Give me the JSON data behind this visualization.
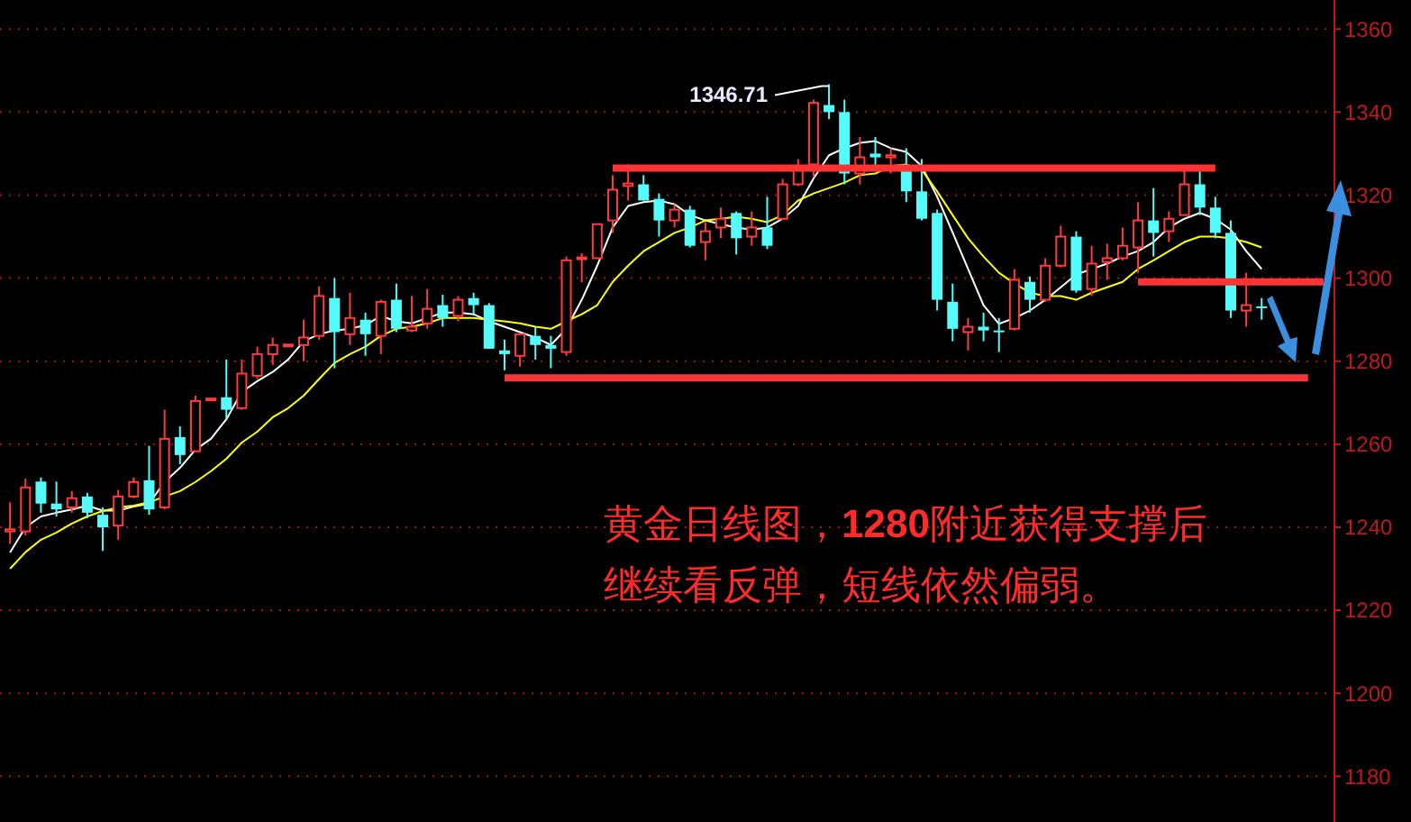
{
  "chart_data": {
    "type": "candlestick",
    "categories": [
      null,
      null,
      null,
      null,
      null,
      null,
      null,
      null,
      null,
      null,
      null,
      null,
      null,
      null,
      null,
      null,
      null,
      null,
      null,
      null,
      null,
      null,
      null,
      null,
      null,
      null,
      null,
      null,
      null,
      null,
      null,
      null,
      null,
      null,
      null,
      null,
      null,
      null,
      null,
      null,
      null,
      null,
      null,
      null,
      null,
      null,
      null,
      null,
      null,
      null,
      null,
      null,
      null,
      null,
      null,
      null,
      null,
      null,
      null,
      null,
      null,
      null,
      null,
      null,
      null,
      null,
      null,
      null,
      null,
      null,
      null,
      null,
      null,
      null,
      null,
      null,
      null,
      null,
      null,
      null,
      null,
      null,
      null,
      null,
      null,
      null
    ],
    "ohlc": [
      [
        1239,
        1246,
        1236,
        1239.5
      ],
      [
        1239,
        1251.7,
        1238,
        1249.6
      ],
      [
        1251,
        1252,
        1243.5,
        1245.7
      ],
      [
        1245.7,
        1251,
        1242.6,
        1244.3
      ],
      [
        1244.8,
        1248.7,
        1243.5,
        1247
      ],
      [
        1247.4,
        1248.3,
        1242.2,
        1243.5
      ],
      [
        1243,
        1244.8,
        1234.3,
        1240
      ],
      [
        1240.4,
        1249,
        1237,
        1247.4
      ],
      [
        1247.4,
        1252,
        1247,
        1250.9
      ],
      [
        1251.3,
        1259.6,
        1243,
        1244.3
      ],
      [
        1244.8,
        1268.3,
        1244.3,
        1261.3
      ],
      [
        1261.7,
        1264.3,
        1255.2,
        1257.4
      ],
      [
        1258.3,
        1271.7,
        1258.3,
        1270.4
      ],
      [
        1270.9,
        1271,
        1270.8,
        1271
      ],
      [
        1271.3,
        1280.4,
        1266.1,
        1268.3
      ],
      [
        1268.7,
        1280.4,
        1268.3,
        1277
      ],
      [
        1276.5,
        1283.5,
        1275.7,
        1281.7
      ],
      [
        1281.7,
        1285.7,
        1279.1,
        1283.9
      ],
      [
        1283.9,
        1284,
        1283.8,
        1284
      ],
      [
        1283.9,
        1290,
        1280,
        1285.7
      ],
      [
        1286.1,
        1298,
        1285.2,
        1295.7
      ],
      [
        1295.2,
        1300,
        1278.3,
        1287
      ],
      [
        1286.5,
        1296.5,
        1283.9,
        1290.4
      ],
      [
        1290,
        1291.7,
        1281.3,
        1286.5
      ],
      [
        1286.1,
        1294.8,
        1281.7,
        1294.3
      ],
      [
        1294.8,
        1298.7,
        1287,
        1287.8
      ],
      [
        1287.4,
        1295.7,
        1287,
        1288.3
      ],
      [
        1289.1,
        1297.4,
        1287.8,
        1292.6
      ],
      [
        1293.5,
        1296,
        1288.3,
        1290.4
      ],
      [
        1290.9,
        1295.7,
        1289.6,
        1294.8
      ],
      [
        1295.2,
        1296.5,
        1291.3,
        1293.5
      ],
      [
        1293.5,
        1294,
        1283,
        1283
      ],
      [
        1282.6,
        1285.2,
        1277.8,
        1281.7
      ],
      [
        1281.3,
        1286.5,
        1278.7,
        1286.5
      ],
      [
        1286.1,
        1288.3,
        1280.4,
        1283.9
      ],
      [
        1283.9,
        1286.1,
        1278.3,
        1283
      ],
      [
        1282.2,
        1305.2,
        1281.3,
        1304.3
      ],
      [
        1304.6,
        1306,
        1299,
        1305
      ],
      [
        1304.8,
        1313,
        1304.8,
        1313
      ],
      [
        1313.9,
        1324.8,
        1310.9,
        1321.3
      ],
      [
        1322.2,
        1327.4,
        1318.7,
        1322.8
      ],
      [
        1322.6,
        1324.8,
        1318.7,
        1318.7
      ],
      [
        1319.1,
        1320.4,
        1310,
        1313.9
      ],
      [
        1313.9,
        1317.8,
        1312.2,
        1316.5
      ],
      [
        1316.5,
        1317.4,
        1307.4,
        1307.8
      ],
      [
        1308.7,
        1313.5,
        1304.3,
        1311.3
      ],
      [
        1312.2,
        1317,
        1309.6,
        1314.3
      ],
      [
        1315.7,
        1316.1,
        1305.7,
        1309.6
      ],
      [
        1310,
        1316,
        1307.8,
        1312.2
      ],
      [
        1312.2,
        1319.6,
        1307,
        1307.8
      ],
      [
        1314.3,
        1323.9,
        1314,
        1322.6
      ],
      [
        1322.6,
        1328.7,
        1322.2,
        1327
      ],
      [
        1327.4,
        1343,
        1324.3,
        1342.2
      ],
      [
        1341.7,
        1346.71,
        1338.3,
        1340
      ],
      [
        1340,
        1343,
        1322.6,
        1325.2
      ],
      [
        1325.2,
        1334,
        1322.6,
        1329.1
      ],
      [
        1330,
        1334,
        1327,
        1329.1
      ],
      [
        1329.1,
        1331.3,
        1325.2,
        1329.6
      ],
      [
        1326,
        1331.3,
        1318.3,
        1320.9
      ],
      [
        1320.9,
        1328.7,
        1313.9,
        1314.3
      ],
      [
        1315.7,
        1316.5,
        1292.2,
        1294.8
      ],
      [
        1294.3,
        1298.7,
        1284.8,
        1287.8
      ],
      [
        1287,
        1290.4,
        1282.6,
        1288.3
      ],
      [
        1288.3,
        1291.7,
        1284.8,
        1287.4
      ],
      [
        1287.4,
        1290.4,
        1282.2,
        1287
      ],
      [
        1287.8,
        1302.2,
        1287.4,
        1299.6
      ],
      [
        1299.1,
        1300.4,
        1291.7,
        1294.8
      ],
      [
        1294.8,
        1304.8,
        1294.3,
        1303
      ],
      [
        1303,
        1312.6,
        1302.6,
        1310
      ],
      [
        1310,
        1311.3,
        1296.5,
        1297
      ],
      [
        1297.4,
        1307.8,
        1295.7,
        1303.5
      ],
      [
        1303.9,
        1308.3,
        1299.6,
        1304.8
      ],
      [
        1304.8,
        1312.2,
        1304.3,
        1307.8
      ],
      [
        1307.4,
        1318.3,
        1301.3,
        1313.9
      ],
      [
        1313.9,
        1321.7,
        1305.2,
        1310.9
      ],
      [
        1311.3,
        1316.1,
        1308.7,
        1314.3
      ],
      [
        1315.2,
        1326.1,
        1315.2,
        1322.6
      ],
      [
        1322.6,
        1325.7,
        1315.2,
        1317
      ],
      [
        1317,
        1319.6,
        1309.6,
        1310.9
      ],
      [
        1310.9,
        1313.9,
        1290.4,
        1292.2
      ],
      [
        1292.2,
        1301.3,
        1288.3,
        1293.5
      ],
      [
        1293.2,
        1295.2,
        1290,
        1293
      ],
      null,
      null,
      null,
      null
    ],
    "colors": [
      "#ff3b3b",
      "#ff3b3b",
      "#54fcfc",
      "#54fcfc",
      "#ff3b3b",
      "#54fcfc",
      "#54fcfc",
      "#ff3b3b",
      "#ff3b3b",
      "#54fcfc",
      "#ff3b3b",
      "#54fcfc",
      "#ff3b3b",
      "#ff3b3b",
      "#54fcfc",
      "#ff3b3b",
      "#ff3b3b",
      "#ff3b3b",
      "#ff3b3b",
      "#ff3b3b",
      "#ff3b3b",
      "#54fcfc",
      "#ff3b3b",
      "#54fcfc",
      "#ff3b3b",
      "#54fcfc",
      "#ff3b3b",
      "#ff3b3b",
      "#54fcfc",
      "#ff3b3b",
      "#54fcfc",
      "#54fcfc",
      "#54fcfc",
      "#ff3b3b",
      "#54fcfc",
      "#54fcfc",
      "#ff3b3b",
      "#ff3b3b",
      "#ff3b3b",
      "#ff3b3b",
      "#ff3b3b",
      "#54fcfc",
      "#54fcfc",
      "#ff3b3b",
      "#54fcfc",
      "#ff3b3b",
      "#ff3b3b",
      "#54fcfc",
      "#ff3b3b",
      "#54fcfc",
      "#ff3b3b",
      "#ff3b3b",
      "#ff3b3b",
      "#54fcfc",
      "#54fcfc",
      "#ff3b3b",
      "#54fcfc",
      "#ff3b3b",
      "#54fcfc",
      "#54fcfc",
      "#54fcfc",
      "#54fcfc",
      "#ff3b3b",
      "#54fcfc",
      "#54fcfc",
      "#ff3b3b",
      "#54fcfc",
      "#ff3b3b",
      "#ff3b3b",
      "#54fcfc",
      "#ff3b3b",
      "#ff3b3b",
      "#ff3b3b",
      "#ff3b3b",
      "#54fcfc",
      "#ff3b3b",
      "#ff3b3b",
      "#54fcfc",
      "#54fcfc",
      "#54fcfc",
      "#ff3b3b",
      "#54fcfc",
      null,
      null,
      null,
      null
    ],
    "series": [
      {
        "type": "line",
        "color": "#ffffff",
        "values": [
          1233.9,
          1240,
          1242.6,
          1243.5,
          1244.3,
          1245.2,
          1244,
          1244,
          1245,
          1245.7,
          1250.9,
          1254.3,
          1258.7,
          1261.3,
          1266,
          1272.6,
          1275.2,
          1277.4,
          1280.4,
          1284.8,
          1286.5,
          1287.4,
          1287.8,
          1288.7,
          1290.9,
          1289.6,
          1289.1,
          1290.4,
          1291.7,
          1291.7,
          1291.3,
          1289.6,
          1288.3,
          1287,
          1285.7,
          1283.9,
          1287.8,
          1294.8,
          1303,
          1312.2,
          1317.4,
          1318.3,
          1318.7,
          1317.8,
          1315.2,
          1313.9,
          1313,
          1312.2,
          1311.7,
          1312.2,
          1314.3,
          1317.4,
          1324,
          1329.6,
          1331.3,
          1332.6,
          1333,
          1331.3,
          1330.4,
          1327,
          1319.6,
          1311,
          1302.2,
          1293.5,
          1289,
          1290.4,
          1292.2,
          1294.8,
          1297.8,
          1300.9,
          1302.2,
          1303.5,
          1305.2,
          1306.5,
          1308.7,
          1312.2,
          1314.3,
          1315.7,
          1314.3,
          1311.7,
          1306.5,
          1302.2,
          null,
          null,
          null,
          null
        ]
      },
      {
        "type": "line",
        "color": "#ffff00",
        "values": [
          1230,
          1234,
          1237,
          1238.7,
          1240.9,
          1242.6,
          1243.9,
          1244.8,
          1245.2,
          1246,
          1247.4,
          1248.7,
          1250.9,
          1253.5,
          1256.5,
          1260.4,
          1263,
          1266.5,
          1268.7,
          1271.7,
          1275.7,
          1279.6,
          1281.7,
          1283.5,
          1286.1,
          1287.8,
          1288.3,
          1289.1,
          1290.4,
          1290.4,
          1290.4,
          1290,
          1289.6,
          1289.1,
          1288.3,
          1287.8,
          1289.6,
          1291.3,
          1293.5,
          1299.1,
          1303,
          1306.5,
          1308.7,
          1310.9,
          1312.2,
          1313.9,
          1314.3,
          1314.8,
          1314.3,
          1313.5,
          1315.2,
          1318.7,
          1320.4,
          1321.7,
          1323,
          1324.8,
          1325.2,
          1327,
          1327.4,
          1326.1,
          1320.9,
          1315.2,
          1309.6,
          1305.2,
          1301.3,
          1298.7,
          1296.5,
          1295.7,
          1295.7,
          1294.8,
          1296.5,
          1297.8,
          1299.1,
          1302.2,
          1304.3,
          1306.5,
          1308.7,
          1310,
          1310,
          1309.6,
          1308.7,
          1307.4,
          null,
          null,
          null,
          null
        ]
      },
      {
        "type": "line",
        "color": "#ff3333",
        "values": [
          null,
          null,
          null,
          null,
          null,
          null,
          null,
          null,
          null,
          null,
          null,
          null,
          null,
          null,
          null,
          null,
          null,
          null,
          null,
          null,
          null,
          null,
          null,
          null,
          null,
          null,
          null,
          null,
          null,
          null,
          null,
          null,
          1276,
          1276,
          1276,
          1276,
          1276,
          1276,
          1276,
          1276,
          1276,
          1276,
          1276,
          1276,
          1276,
          1276,
          1276,
          1276,
          1276,
          1276,
          1276,
          1276,
          1276,
          1276,
          1276,
          1276,
          1276,
          1276,
          1276,
          1276,
          1276,
          1276,
          1276,
          1276,
          1276,
          1276,
          1276,
          1276,
          1276,
          1276,
          1276,
          1276,
          1276,
          1276,
          1276,
          1276,
          1276,
          1276,
          1276,
          1276,
          1276,
          1276,
          1276,
          1276,
          1276,
          null
        ]
      },
      {
        "type": "line",
        "color": "#ff3333",
        "values": [
          null,
          null,
          null,
          null,
          null,
          null,
          null,
          null,
          null,
          null,
          null,
          null,
          null,
          null,
          null,
          null,
          null,
          null,
          null,
          null,
          null,
          null,
          null,
          null,
          null,
          null,
          null,
          null,
          null,
          null,
          null,
          null,
          null,
          null,
          null,
          null,
          null,
          null,
          null,
          1326.5,
          1326.5,
          1326.5,
          1326.5,
          1326.5,
          1326.5,
          1326.5,
          1326.5,
          1326.5,
          1326.5,
          1326.5,
          1326.5,
          1326.5,
          1326.5,
          1326.5,
          1326.5,
          1326.5,
          1326.5,
          1326.5,
          1326.5,
          1326.5,
          1326.5,
          1326.5,
          1326.5,
          1326.5,
          1326.5,
          1326.5,
          1326.5,
          1326.5,
          1326.5,
          1326.5,
          1326.5,
          1326.5,
          1326.5,
          1326.5,
          1326.5,
          1326.5,
          1326.5,
          1326.5,
          1326.5,
          null,
          null,
          null,
          null,
          null,
          null,
          null
        ]
      },
      {
        "type": "line",
        "color": "#ff3333",
        "values": [
          null,
          null,
          null,
          null,
          null,
          null,
          null,
          null,
          null,
          null,
          null,
          null,
          null,
          null,
          null,
          null,
          null,
          null,
          null,
          null,
          null,
          null,
          null,
          null,
          null,
          null,
          null,
          null,
          null,
          null,
          null,
          null,
          null,
          null,
          null,
          null,
          null,
          null,
          null,
          null,
          null,
          null,
          null,
          null,
          null,
          null,
          null,
          null,
          null,
          null,
          null,
          null,
          null,
          null,
          null,
          null,
          null,
          null,
          null,
          null,
          null,
          null,
          null,
          null,
          null,
          null,
          null,
          null,
          null,
          null,
          null,
          null,
          null,
          1299.1,
          1299.1,
          1299.1,
          1299.1,
          1299.1,
          1299.1,
          1299.1,
          1299.1,
          1299.1,
          1299.1,
          1299.1,
          1299.1,
          1299.1
        ]
      }
    ],
    "ylim": [
      1169,
      1367
    ],
    "yticks": [
      1180,
      1200,
      1220,
      1240,
      1260,
      1280,
      1300,
      1320,
      1340,
      1360
    ],
    "grid": "y",
    "annotations": [
      "1346.71",
      "黄金日线图，1280附近获得支撑后",
      "继续看反弹，短线依然偏弱。"
    ]
  }
}
